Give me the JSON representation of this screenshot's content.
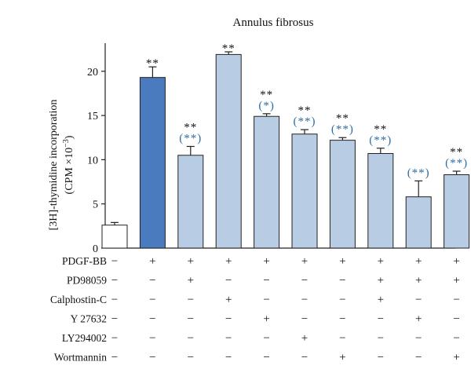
{
  "chart_data": {
    "type": "bar",
    "title": "Annulus fibrosus",
    "ylabel_main": "-thymidine incorporation",
    "ylabel_iso": "[3H]",
    "ylabel_unit_prefix": "(CPM ×10",
    "ylabel_unit_exp": "−3",
    "ylabel_unit_suffix": ")",
    "ylim": [
      0,
      23
    ],
    "yticks": [
      "0",
      "5",
      "10",
      "15",
      "20"
    ],
    "yticks_values": [
      0,
      5,
      10,
      15,
      20
    ],
    "values": [
      2.6,
      19.3,
      10.5,
      21.9,
      14.9,
      12.9,
      12.2,
      10.7,
      5.8,
      8.3
    ],
    "errors": [
      0.3,
      1.2,
      1.0,
      0.3,
      0.3,
      0.5,
      0.3,
      0.6,
      1.8,
      0.4
    ],
    "bar_colors": [
      "#ffffff",
      "#4a7bbf",
      "#b8cce4",
      "#b8cce4",
      "#b8cce4",
      "#b8cce4",
      "#b8cce4",
      "#b8cce4",
      "#b8cce4",
      "#b8cce4"
    ],
    "sig_black": [
      "",
      "**",
      "**",
      "**",
      "**",
      "**",
      "**",
      "**",
      "",
      "**"
    ],
    "sig_blue": [
      "",
      "",
      "(**)",
      "",
      "(*)",
      "(**)",
      "(**)",
      "(**)",
      "(**)",
      "(**)"
    ],
    "treatments": [
      {
        "name": "PDGF-BB",
        "signs": [
          "−",
          "+",
          "+",
          "+",
          "+",
          "+",
          "+",
          "+",
          "+",
          "+"
        ]
      },
      {
        "name": "PD98059",
        "signs": [
          "−",
          "−",
          "+",
          "−",
          "−",
          "−",
          "−",
          "+",
          "+",
          "+"
        ]
      },
      {
        "name": "Calphostin-C",
        "signs": [
          "−",
          "−",
          "−",
          "+",
          "−",
          "−",
          "−",
          "+",
          "−",
          "−"
        ]
      },
      {
        "name": "Y 27632",
        "signs": [
          "−",
          "−",
          "−",
          "−",
          "+",
          "−",
          "−",
          "−",
          "+",
          "−"
        ]
      },
      {
        "name": "LY294002",
        "signs": [
          "−",
          "−",
          "−",
          "−",
          "−",
          "+",
          "−",
          "−",
          "−",
          "−"
        ]
      },
      {
        "name": "Wortmannin",
        "signs": [
          "−",
          "−",
          "−",
          "−",
          "−",
          "−",
          "+",
          "−",
          "−",
          "+"
        ]
      }
    ],
    "colors": {
      "dark_bar": "#4a7bbf",
      "light_bar": "#b8cce4",
      "blue_text": "#2e6da4"
    }
  }
}
